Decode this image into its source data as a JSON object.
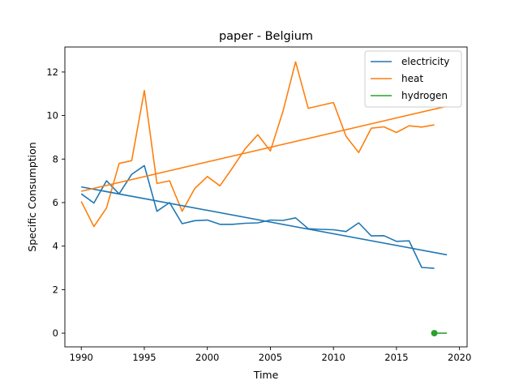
{
  "chart_data": {
    "type": "line",
    "title": "paper - Belgium",
    "xlabel": "Time",
    "ylabel": "Specific Consumption",
    "xlim": [
      1988.7,
      2020.6
    ],
    "ylim": [
      -0.63,
      13.15
    ],
    "xticks": [
      1990,
      1995,
      2000,
      2005,
      2010,
      2015,
      2020
    ],
    "yticks": [
      0,
      2,
      4,
      6,
      8,
      10,
      12
    ],
    "legend_position": "top-right",
    "series": [
      {
        "name": "electricity",
        "color": "#1f77b4",
        "x": [
          1990,
          1991,
          1992,
          1993,
          1994,
          1995,
          1996,
          1997,
          1998,
          1999,
          2000,
          2001,
          2002,
          2003,
          2004,
          2005,
          2006,
          2007,
          2008,
          2009,
          2010,
          2011,
          2012,
          2013,
          2014,
          2015,
          2016,
          2017,
          2018
        ],
        "values": [
          6.4,
          5.98,
          7.0,
          6.4,
          7.3,
          7.7,
          5.6,
          6.0,
          5.03,
          5.17,
          5.2,
          5.0,
          5.0,
          5.05,
          5.07,
          5.2,
          5.18,
          5.3,
          4.8,
          4.77,
          4.75,
          4.67,
          5.07,
          4.47,
          4.48,
          4.22,
          4.24,
          3.02,
          2.98
        ]
      },
      {
        "name": "heat",
        "color": "#ff7f0e",
        "x": [
          1990,
          1991,
          1992,
          1993,
          1994,
          1995,
          1996,
          1997,
          1998,
          1999,
          2000,
          2001,
          2002,
          2003,
          2004,
          2005,
          2006,
          2007,
          2008,
          2009,
          2010,
          2011,
          2012,
          2013,
          2014,
          2015,
          2016,
          2017,
          2018
        ],
        "values": [
          6.05,
          4.9,
          5.75,
          7.8,
          7.93,
          11.15,
          6.88,
          7.0,
          5.6,
          6.65,
          7.2,
          6.77,
          7.6,
          8.47,
          9.12,
          8.37,
          10.2,
          12.47,
          10.33,
          10.47,
          10.6,
          9.05,
          8.3,
          9.42,
          9.48,
          9.22,
          9.53,
          9.47,
          9.57
        ]
      },
      {
        "name": "hydrogen",
        "color": "#2ca02c",
        "x": [
          2018,
          2019
        ],
        "values": [
          0.0,
          0.0
        ]
      }
    ],
    "trend_lines": [
      {
        "series": "electricity",
        "color": "#1f77b4",
        "x": [
          1990,
          2019
        ],
        "values": [
          6.72,
          3.6
        ]
      },
      {
        "series": "heat",
        "color": "#ff7f0e",
        "x": [
          1990,
          2019
        ],
        "values": [
          6.52,
          10.43
        ]
      }
    ],
    "markers": [
      {
        "series": "hydrogen",
        "color": "#2ca02c",
        "x": 2018,
        "value": 0.0
      }
    ]
  }
}
